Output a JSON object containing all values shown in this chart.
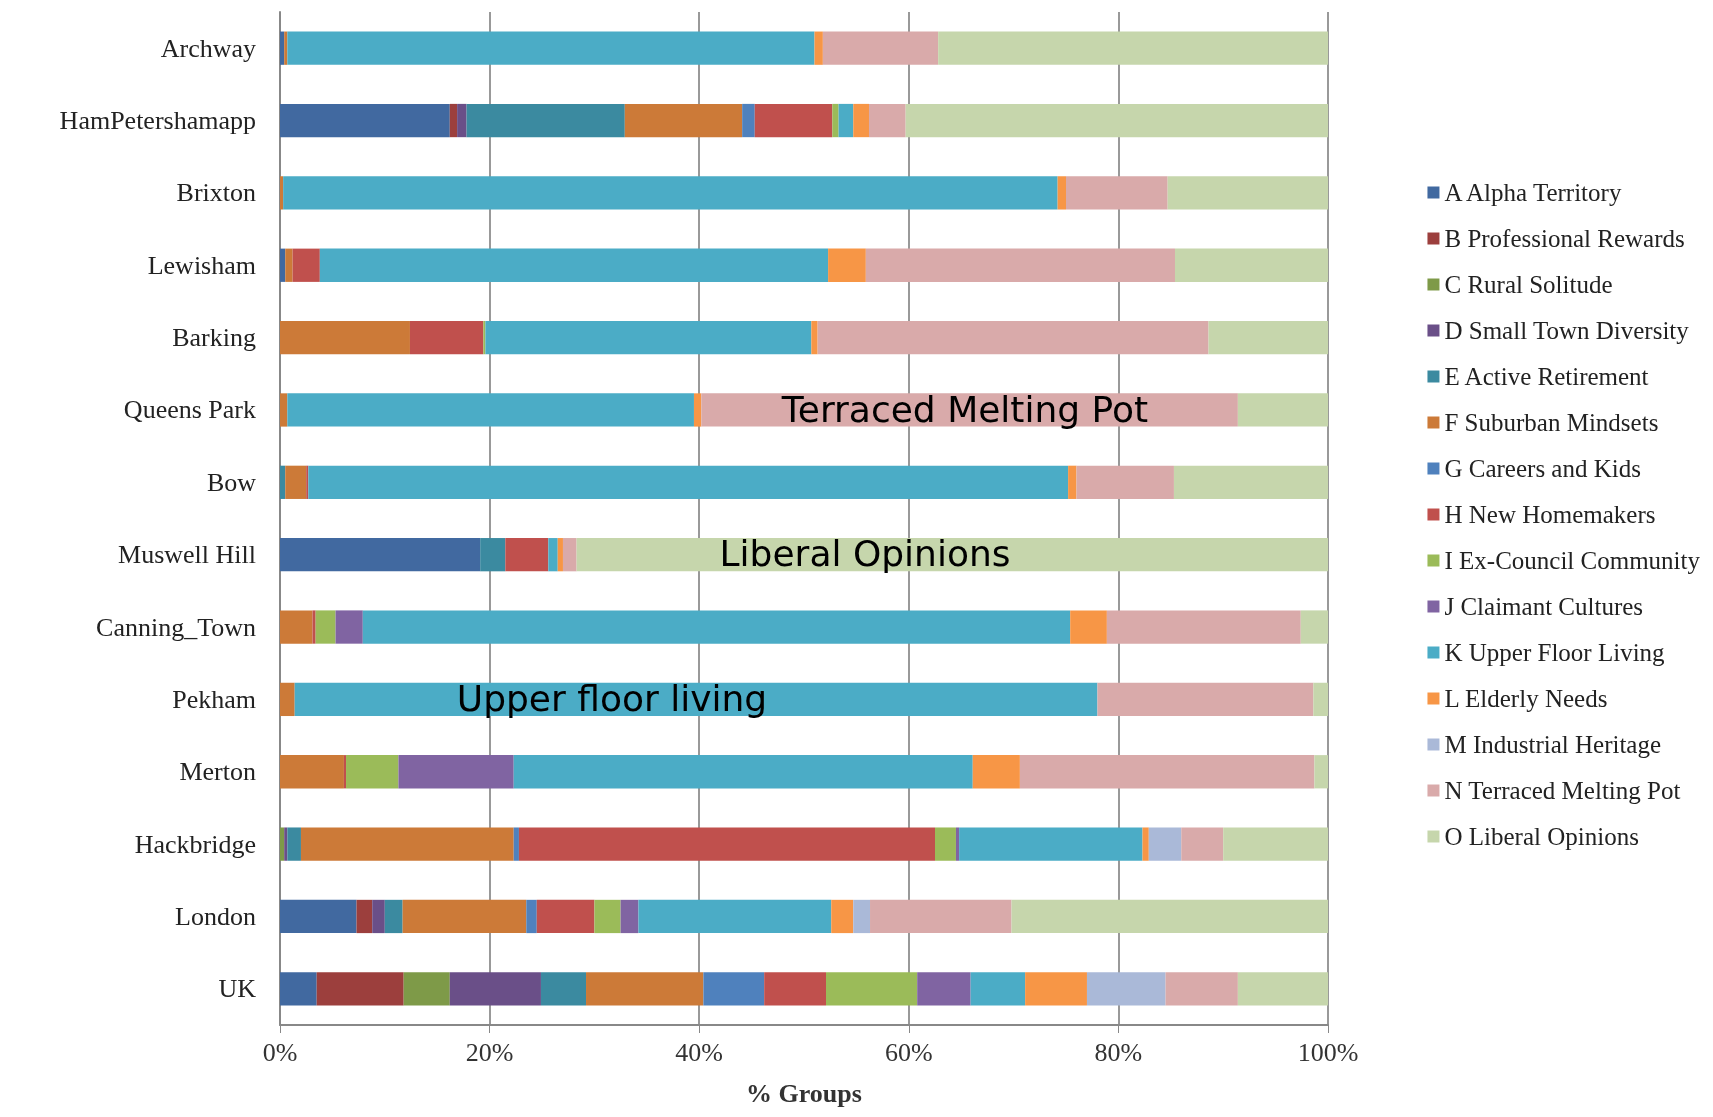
{
  "chart_data": {
    "type": "bar",
    "orientation": "horizontal",
    "stacked": true,
    "categories": [
      "Archway",
      "HamPetershamapp",
      "Brixton",
      "Lewisham",
      "Barking",
      "Queens Park",
      "Bow",
      "Muswell Hill",
      "Canning_Town",
      "Pekham",
      "Merton",
      "Hackbridge",
      "London",
      "UK"
    ],
    "series": [
      {
        "name": "A Alpha Territory",
        "color": "#4169a0",
        "values": [
          0.4,
          16.2,
          0,
          0.5,
          0,
          0,
          0,
          19.1,
          0,
          0,
          0,
          0,
          7.3,
          3.5
        ]
      },
      {
        "name": "B Professional Rewards",
        "color": "#9c3f3d",
        "values": [
          0,
          0.7,
          0,
          0,
          0,
          0,
          0,
          0,
          0,
          0,
          0,
          0,
          1.5,
          8.3
        ]
      },
      {
        "name": "C Rural Solitude",
        "color": "#7e9a48",
        "values": [
          0,
          0,
          0,
          0,
          0,
          0,
          0,
          0,
          0,
          0,
          0,
          0.4,
          0,
          4.4
        ]
      },
      {
        "name": "D Small Town Diversity",
        "color": "#6a4f88",
        "values": [
          0,
          0.9,
          0,
          0,
          0,
          0,
          0,
          0,
          0,
          0,
          0,
          0.3,
          1.2,
          8.7
        ]
      },
      {
        "name": "E Active Retirement",
        "color": "#3b8aa0",
        "values": [
          0,
          15.1,
          0,
          0,
          0,
          0,
          0.5,
          2.4,
          0,
          0,
          0,
          1.3,
          1.7,
          4.3
        ]
      },
      {
        "name": "F Suburban Mindsets",
        "color": "#cc7a38",
        "values": [
          0.3,
          11.2,
          0.3,
          0.7,
          12.4,
          0.7,
          2.0,
          0,
          3.1,
          1.4,
          6.1,
          20.3,
          11.8,
          11.2
        ]
      },
      {
        "name": "G Careers and Kids",
        "color": "#4f81bd",
        "values": [
          0,
          1.2,
          0,
          0,
          0,
          0,
          0,
          0,
          0,
          0,
          0,
          0.5,
          1.0,
          5.8
        ]
      },
      {
        "name": "H New Homemakers",
        "color": "#c0504d",
        "values": [
          0,
          7.4,
          0,
          2.6,
          7.0,
          0,
          0.2,
          4.1,
          0.3,
          0,
          0.2,
          39.7,
          5.5,
          5.9
        ]
      },
      {
        "name": "I Ex-Council Community",
        "color": "#9bbb59",
        "values": [
          0,
          0.6,
          0,
          0,
          0.2,
          0,
          0,
          0,
          1.9,
          0,
          5.0,
          2.0,
          2.5,
          8.7
        ]
      },
      {
        "name": "J Claimant Cultures",
        "color": "#8064a2",
        "values": [
          0,
          0,
          0,
          0,
          0,
          0,
          0,
          0,
          2.6,
          0,
          11.0,
          0.3,
          1.7,
          5.1
        ]
      },
      {
        "name": "K Upper Floor Living",
        "color": "#4bacc6",
        "values": [
          50.3,
          1.4,
          73.9,
          48.5,
          31.1,
          38.8,
          72.5,
          0.9,
          67.5,
          76.6,
          43.8,
          17.5,
          18.4,
          5.2
        ]
      },
      {
        "name": "L Elderly Needs",
        "color": "#f79646",
        "values": [
          0.8,
          1.5,
          0.8,
          3.6,
          0.6,
          0.7,
          0.8,
          0.5,
          3.5,
          0,
          4.5,
          0.6,
          2.1,
          5.9
        ]
      },
      {
        "name": "M Industrial Heritage",
        "color": "#aab9d8",
        "values": [
          0,
          0,
          0,
          0,
          0,
          0,
          0,
          0,
          0,
          0,
          0,
          3.1,
          1.6,
          7.5
        ]
      },
      {
        "name": "N Terraced Melting Pot",
        "color": "#d9aaaa",
        "values": [
          11.0,
          3.5,
          9.7,
          29.5,
          37.3,
          51.2,
          9.3,
          1.3,
          18.5,
          20.6,
          28.1,
          4.0,
          13.5,
          6.9
        ]
      },
      {
        "name": "O Liberal Opinions",
        "color": "#c6d6ac",
        "values": [
          37.2,
          40.3,
          15.3,
          14.6,
          11.4,
          8.6,
          14.7,
          71.7,
          2.6,
          1.4,
          1.3,
          10.0,
          30.2,
          8.6
        ]
      }
    ],
    "xlabel": "% Groups",
    "xlim": [
      0,
      100
    ],
    "xticks": [
      {
        "value": 0,
        "label": "0%"
      },
      {
        "value": 20,
        "label": "20%"
      },
      {
        "value": 40,
        "label": "40%"
      },
      {
        "value": 60,
        "label": "60%"
      },
      {
        "value": 80,
        "label": "80%"
      },
      {
        "value": 100,
        "label": "100%"
      }
    ],
    "grid": "x",
    "legend": "right",
    "annotations": [
      "Terraced Melting Pot",
      "Liberal Opinions",
      "Upper floor living"
    ]
  }
}
